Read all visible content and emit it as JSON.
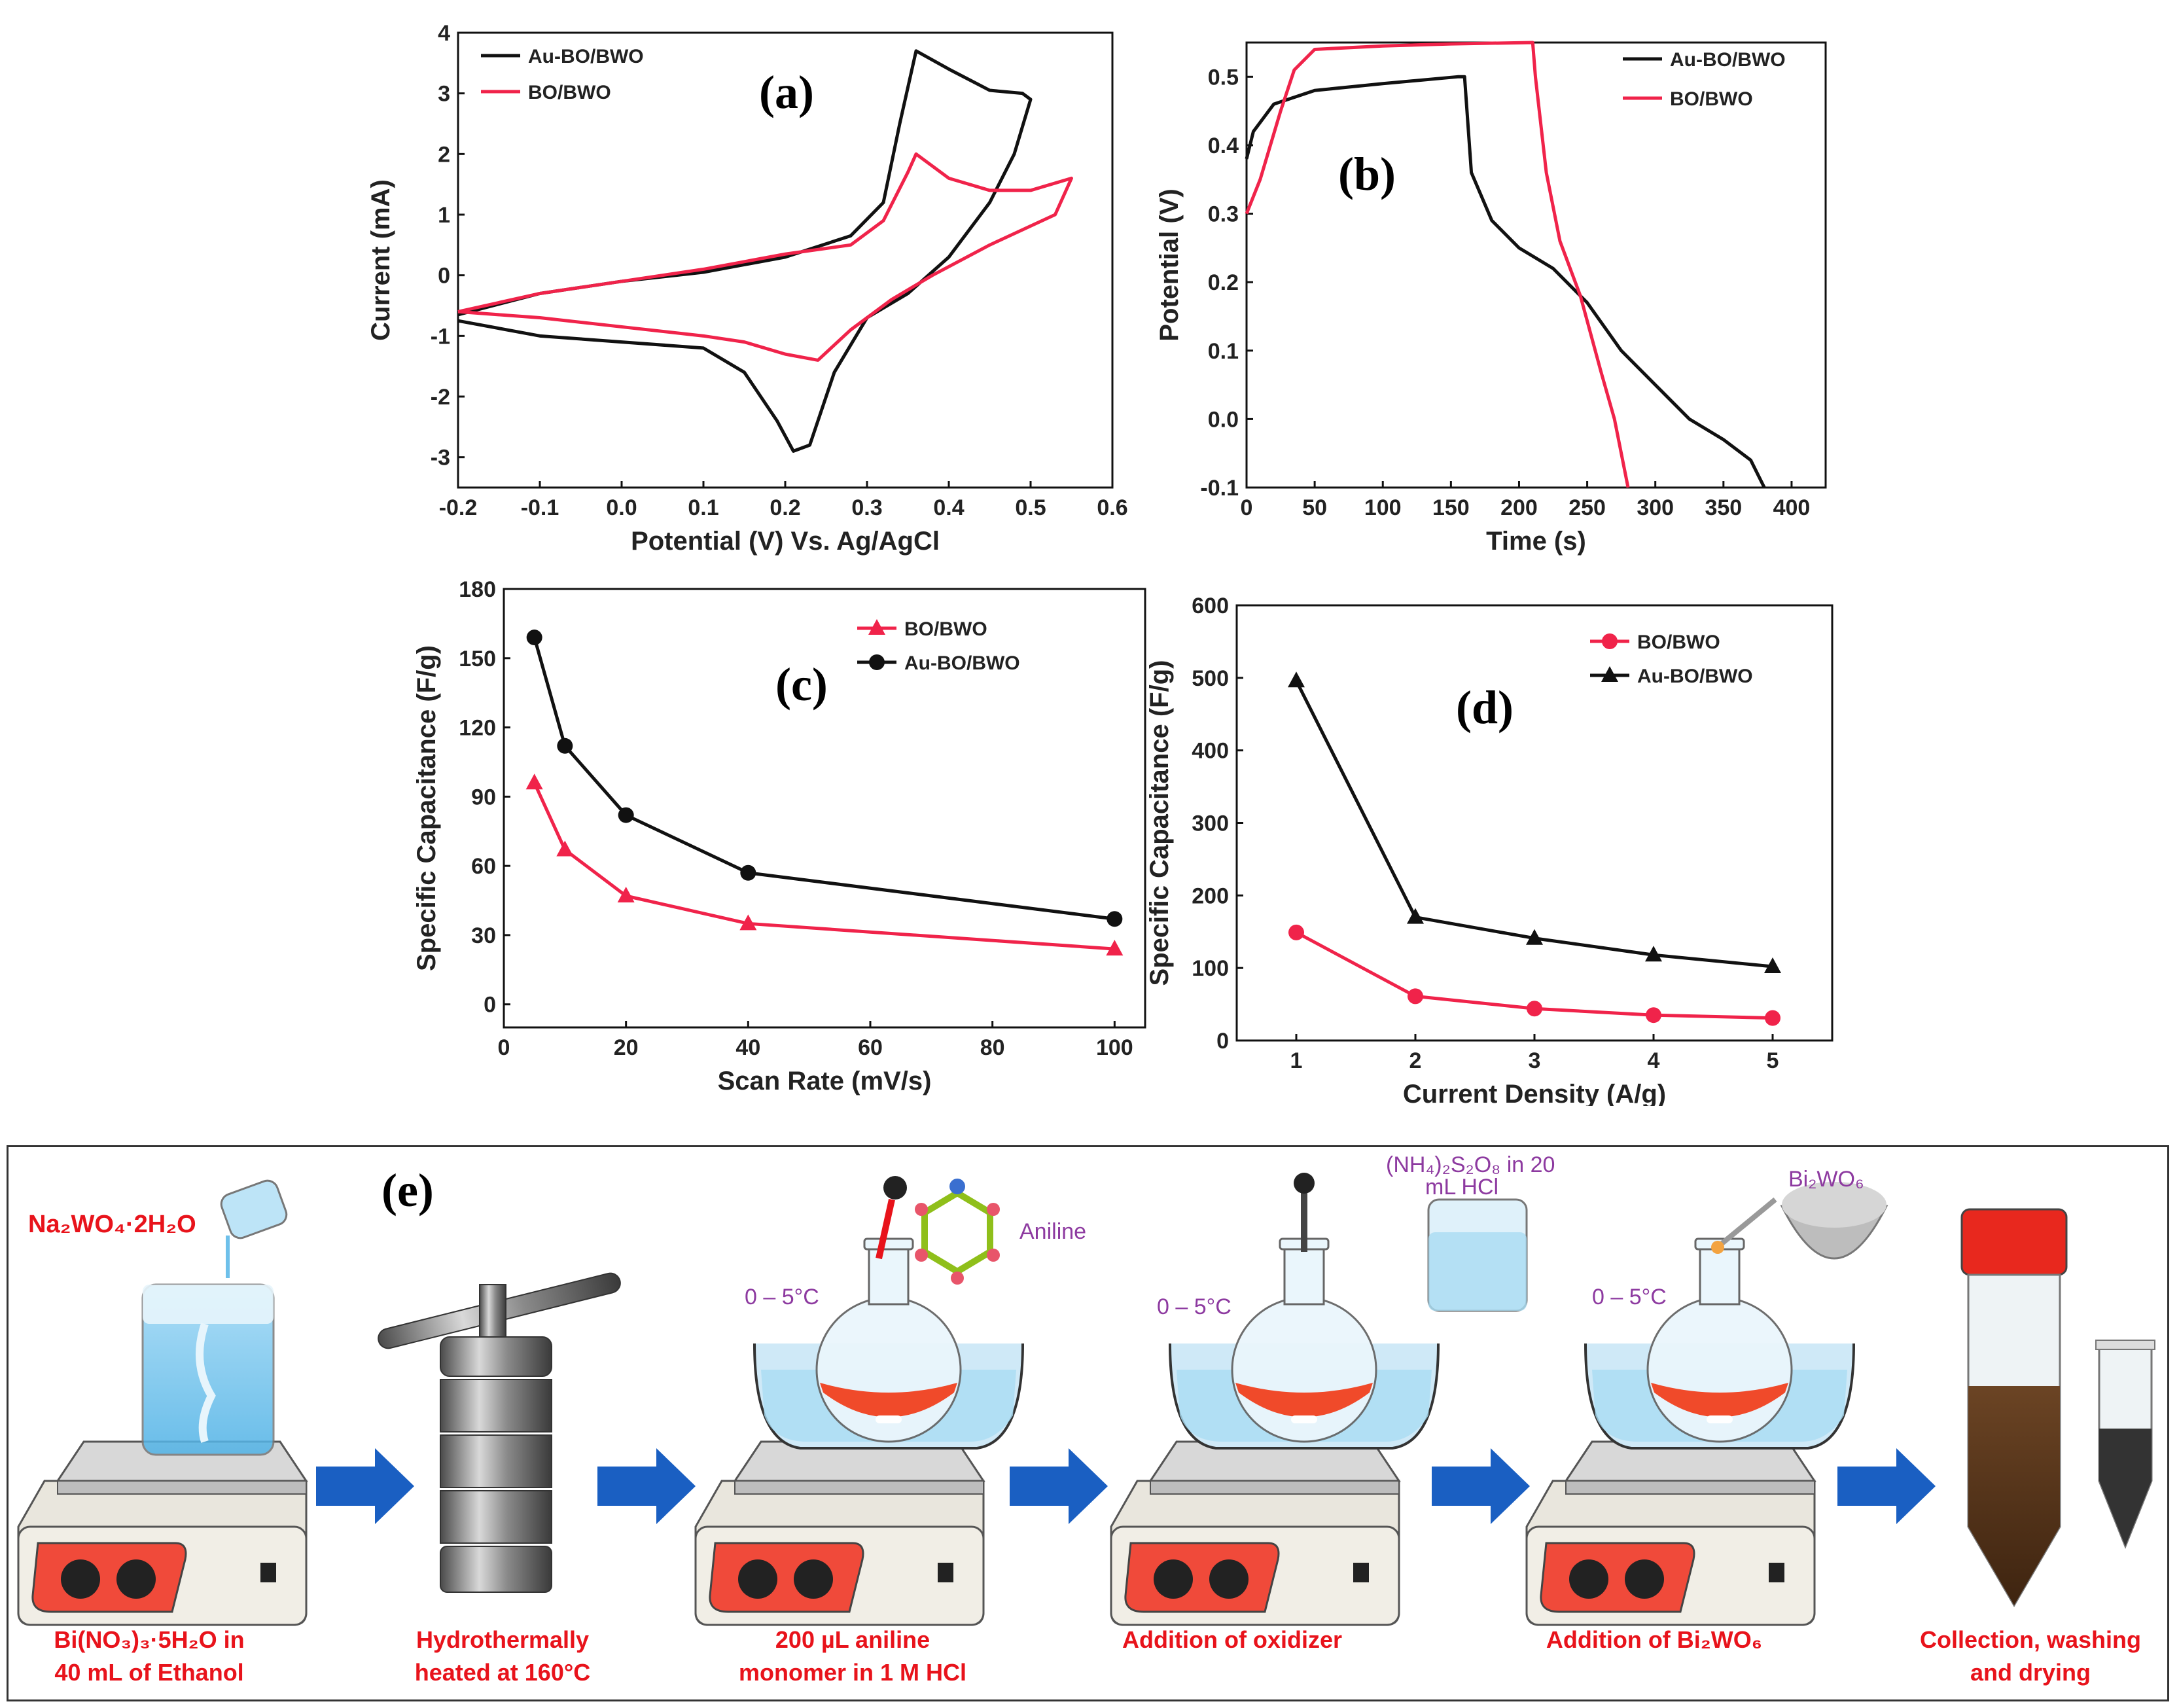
{
  "colors": {
    "black_series": "#111111",
    "red_series": "#f0234a",
    "arrow": "#1a5fc2",
    "step_caption": "#e8131b",
    "temp_label": "#8d3aa0"
  },
  "chart_data": [
    {
      "id": "a",
      "type": "line",
      "panel_label": "(a)",
      "xlabel": "Potential (V) Vs. Ag/AgCl",
      "ylabel": "Current (mA)",
      "xlim": [
        -0.2,
        0.6
      ],
      "ylim": [
        -3.5,
        4
      ],
      "xticks": [
        "-0.2",
        "-0.1",
        "0.0",
        "0.1",
        "0.2",
        "0.3",
        "0.4",
        "0.5",
        "0.6"
      ],
      "yticks": [
        "-3",
        "-2",
        "-1",
        "0",
        "1",
        "2",
        "3",
        "4"
      ],
      "legend": [
        "Au-BO/BWO",
        "BO/BWO"
      ],
      "series": [
        {
          "name": "Au-BO/BWO",
          "color": "black",
          "points": [
            [
              -0.2,
              -0.65
            ],
            [
              -0.1,
              -0.3
            ],
            [
              0.0,
              -0.1
            ],
            [
              0.1,
              0.05
            ],
            [
              0.2,
              0.3
            ],
            [
              0.28,
              0.65
            ],
            [
              0.32,
              1.2
            ],
            [
              0.34,
              2.5
            ],
            [
              0.36,
              3.7
            ],
            [
              0.4,
              3.4
            ],
            [
              0.45,
              3.05
            ],
            [
              0.49,
              3.0
            ],
            [
              0.5,
              2.9
            ],
            [
              0.48,
              2.0
            ],
            [
              0.45,
              1.2
            ],
            [
              0.4,
              0.3
            ],
            [
              0.35,
              -0.3
            ],
            [
              0.3,
              -0.7
            ],
            [
              0.26,
              -1.6
            ],
            [
              0.23,
              -2.8
            ],
            [
              0.21,
              -2.9
            ],
            [
              0.19,
              -2.4
            ],
            [
              0.15,
              -1.6
            ],
            [
              0.1,
              -1.2
            ],
            [
              0.0,
              -1.1
            ],
            [
              -0.1,
              -1.0
            ],
            [
              -0.2,
              -0.75
            ]
          ]
        },
        {
          "name": "BO/BWO",
          "color": "red",
          "points": [
            [
              -0.2,
              -0.6
            ],
            [
              -0.1,
              -0.3
            ],
            [
              0.0,
              -0.1
            ],
            [
              0.1,
              0.1
            ],
            [
              0.2,
              0.35
            ],
            [
              0.28,
              0.5
            ],
            [
              0.32,
              0.9
            ],
            [
              0.35,
              1.7
            ],
            [
              0.36,
              2.0
            ],
            [
              0.4,
              1.6
            ],
            [
              0.45,
              1.4
            ],
            [
              0.5,
              1.4
            ],
            [
              0.55,
              1.6
            ],
            [
              0.53,
              1.0
            ],
            [
              0.45,
              0.5
            ],
            [
              0.38,
              0.0
            ],
            [
              0.33,
              -0.4
            ],
            [
              0.28,
              -0.9
            ],
            [
              0.24,
              -1.4
            ],
            [
              0.2,
              -1.3
            ],
            [
              0.15,
              -1.1
            ],
            [
              0.1,
              -1.0
            ],
            [
              0.0,
              -0.85
            ],
            [
              -0.1,
              -0.7
            ],
            [
              -0.2,
              -0.6
            ]
          ]
        }
      ]
    },
    {
      "id": "b",
      "type": "line",
      "panel_label": "(b)",
      "xlabel": "Time (s)",
      "ylabel": "Potential (V)",
      "xlim": [
        0,
        425
      ],
      "ylim": [
        -0.1,
        0.55
      ],
      "xticks": [
        "0",
        "50",
        "100",
        "150",
        "200",
        "250",
        "300",
        "350",
        "400"
      ],
      "yticks": [
        "-0.1",
        "0.0",
        "0.1",
        "0.2",
        "0.3",
        "0.4",
        "0.5"
      ],
      "legend": [
        "Au-BO/BWO",
        "BO/BWO"
      ],
      "series": [
        {
          "name": "Au-BO/BWO",
          "color": "black",
          "points": [
            [
              0,
              0.38
            ],
            [
              5,
              0.42
            ],
            [
              20,
              0.46
            ],
            [
              50,
              0.48
            ],
            [
              100,
              0.49
            ],
            [
              155,
              0.5
            ],
            [
              160,
              0.5
            ],
            [
              165,
              0.36
            ],
            [
              180,
              0.29
            ],
            [
              200,
              0.25
            ],
            [
              225,
              0.22
            ],
            [
              250,
              0.17
            ],
            [
              275,
              0.1
            ],
            [
              300,
              0.05
            ],
            [
              325,
              0.0
            ],
            [
              350,
              -0.03
            ],
            [
              370,
              -0.06
            ],
            [
              380,
              -0.1
            ]
          ]
        },
        {
          "name": "BO/BWO",
          "color": "red",
          "points": [
            [
              0,
              0.3
            ],
            [
              10,
              0.35
            ],
            [
              25,
              0.45
            ],
            [
              35,
              0.51
            ],
            [
              50,
              0.54
            ],
            [
              100,
              0.545
            ],
            [
              150,
              0.548
            ],
            [
              210,
              0.55
            ],
            [
              212,
              0.5
            ],
            [
              220,
              0.36
            ],
            [
              230,
              0.26
            ],
            [
              245,
              0.18
            ],
            [
              260,
              0.07
            ],
            [
              270,
              0.0
            ],
            [
              280,
              -0.1
            ]
          ]
        }
      ]
    },
    {
      "id": "c",
      "type": "line",
      "panel_label": "(c)",
      "xlabel": "Scan Rate (mV/s)",
      "ylabel": "Specific Capacitance (F/g)",
      "xlim": [
        0,
        105
      ],
      "ylim": [
        -10,
        180
      ],
      "xticks": [
        "0",
        "20",
        "40",
        "60",
        "80",
        "100"
      ],
      "yticks": [
        "0",
        "30",
        "60",
        "90",
        "120",
        "150",
        "180"
      ],
      "legend": [
        "BO/BWO",
        "Au-BO/BWO"
      ],
      "series": [
        {
          "name": "BO/BWO",
          "color": "red",
          "marker": "triangle",
          "x": [
            5,
            10,
            20,
            40,
            100
          ],
          "values": [
            96,
            67,
            47,
            35,
            24
          ]
        },
        {
          "name": "Au-BO/BWO",
          "color": "black",
          "marker": "circle",
          "x": [
            5,
            10,
            20,
            40,
            100
          ],
          "values": [
            159,
            112,
            82,
            57,
            37
          ]
        }
      ]
    },
    {
      "id": "d",
      "type": "line",
      "panel_label": "(d)",
      "xlabel": "Current Density (A/g)",
      "ylabel": "Specific Capacitance (F/g)",
      "xlim": [
        0.5,
        5.5
      ],
      "ylim": [
        0,
        600
      ],
      "xticks": [
        "1",
        "2",
        "3",
        "4",
        "5"
      ],
      "yticks": [
        "0",
        "100",
        "200",
        "300",
        "400",
        "500",
        "600"
      ],
      "legend": [
        "BO/BWO",
        "Au-BO/BWO"
      ],
      "series": [
        {
          "name": "BO/BWO",
          "color": "red",
          "marker": "circle",
          "x": [
            1,
            2,
            3,
            4,
            5
          ],
          "values": [
            149,
            61,
            44,
            35,
            31
          ]
        },
        {
          "name": "Au-BO/BWO",
          "color": "black",
          "marker": "triangle",
          "x": [
            1,
            2,
            3,
            4,
            5
          ],
          "values": [
            496,
            170,
            141,
            118,
            102
          ]
        }
      ]
    }
  ],
  "scheme": {
    "panel_label": "(e)",
    "reagent1": "Na₂WO₄·2H₂O",
    "aniline_label": "Aniline",
    "oxidizer_label_line1": "(NH₄)₂S₂O₈ in 20",
    "oxidizer_label_line2": "mL HCl",
    "bi2wo6_label": "Bi₂WO₆",
    "temp_labels": [
      "0 – 5°C",
      "0 – 5°C",
      "0 – 5°C"
    ],
    "steps": [
      {
        "line1": "Bi(NO₃)₃·5H₂O in",
        "line2": "40 mL of Ethanol"
      },
      {
        "line1": "Hydrothermally",
        "line2": "heated at 160°C"
      },
      {
        "line1": "200 µL aniline",
        "line2": "monomer in 1 M HCl"
      },
      {
        "line1": "Addition of oxidizer",
        "line2": ""
      },
      {
        "line1": "Addition of Bi₂WO₆",
        "line2": ""
      },
      {
        "line1": "Collection, washing",
        "line2": "and drying"
      }
    ]
  }
}
